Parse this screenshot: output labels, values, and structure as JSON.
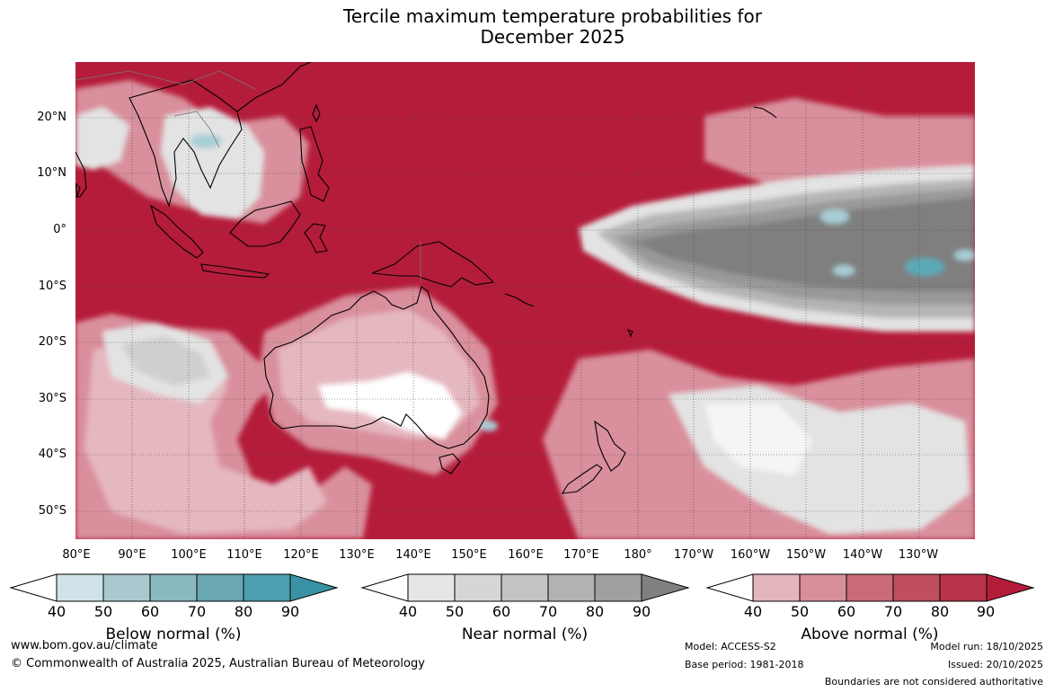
{
  "title": {
    "line1": "Tercile maximum temperature probabilities for",
    "line2": "December 2025"
  },
  "map": {
    "lat_labels": [
      "20°N",
      "10°N",
      "0°",
      "10°S",
      "20°S",
      "30°S",
      "40°S",
      "50°S"
    ],
    "lon_labels": [
      "80°E",
      "90°E",
      "100°E",
      "110°E",
      "120°E",
      "130°E",
      "140°E",
      "150°E",
      "160°E",
      "170°E",
      "180°",
      "170°W",
      "160°W",
      "150°W",
      "140°W",
      "130°W"
    ],
    "colors": {
      "above_90": "#b51c3a",
      "above_80": "#c53f55",
      "above_70": "#cf6676",
      "above_60": "#d98f9c",
      "above_50": "#e5b7bf",
      "white": "#ffffff",
      "near_50": "#e3e3e3",
      "near_60": "#cfcfcf",
      "near_70": "#b5b5b5",
      "near_80": "#999999",
      "near_90": "#7f7f7f",
      "below_50": "#a8ced6",
      "below_70": "#5aaab8"
    }
  },
  "colorbars": [
    {
      "name": "below",
      "title": "Below normal (%)",
      "ticks": [
        "40",
        "50",
        "60",
        "70",
        "80",
        "90"
      ],
      "colors": [
        "#cfe3e8",
        "#a9c9ce",
        "#8ab8bf",
        "#6aa8b3",
        "#4b9fae",
        "#3a93a4"
      ]
    },
    {
      "name": "near",
      "title": "Near normal (%)",
      "ticks": [
        "40",
        "50",
        "60",
        "70",
        "80",
        "90"
      ],
      "colors": [
        "#e6e6e6",
        "#d6d6d6",
        "#c4c4c4",
        "#b3b3b3",
        "#a0a0a0",
        "#808080"
      ]
    },
    {
      "name": "above",
      "title": "Above normal (%)",
      "ticks": [
        "40",
        "50",
        "60",
        "70",
        "80",
        "90"
      ],
      "colors": [
        "#e4b5bc",
        "#d88f9b",
        "#ca6a78",
        "#c04e5f",
        "#b8344a",
        "#b51c3a"
      ]
    }
  ],
  "footer": {
    "website": "www.bom.gov.au/climate",
    "copyright": "© Commonwealth of Australia 2025, Australian Bureau of Meteorology",
    "model": "Model: ACCESS-S2",
    "base_period": "Base period: 1981-2018",
    "model_run": "Model run: 18/10/2025",
    "issued": "Issued: 20/10/2025",
    "disclaimer": "Boundaries are not considered authoritative"
  }
}
